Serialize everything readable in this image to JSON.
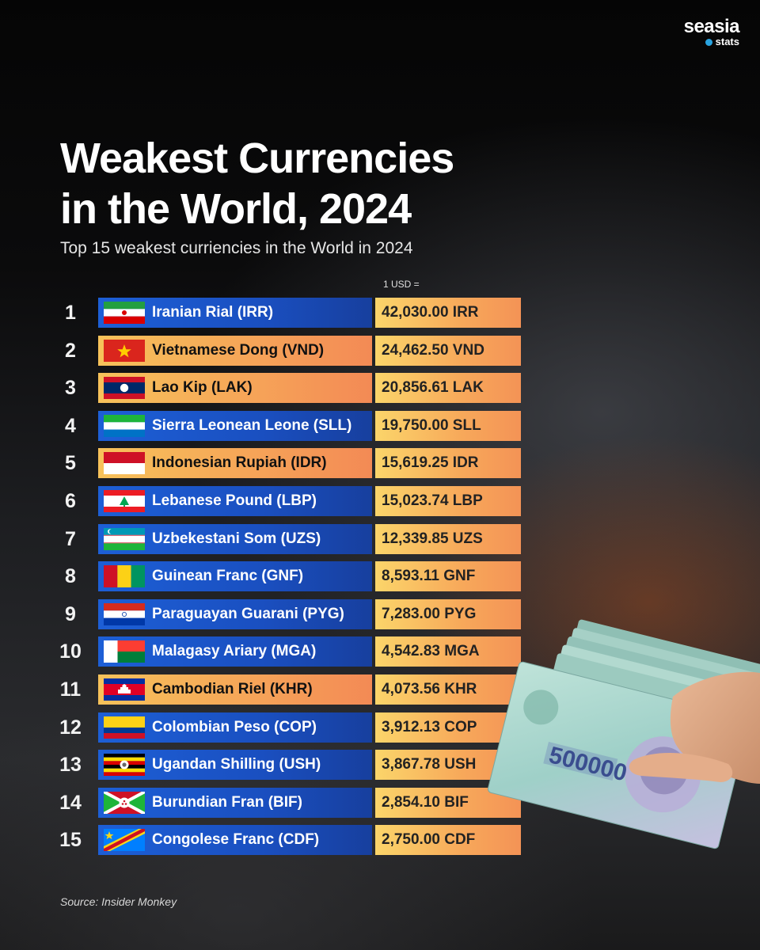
{
  "brand": {
    "name": "seasia",
    "sub": "stats"
  },
  "title_line1": "Weakest Currencies",
  "title_line2": "in the World, 2024",
  "subtitle": "Top 15 weakest curriencies in the World in 2024",
  "column_header": "1 USD =",
  "source": "Source: Insider Monkey",
  "banknote_text": "500000",
  "colors": {
    "blue_cell": "#1d5fd6",
    "orange_cell": "#f6a558",
    "value_cell": "#f7a85a",
    "background": "#0b0b0c"
  },
  "chart_data": {
    "type": "table",
    "title": "Weakest Currencies in the World, 2024",
    "subtitle": "Top 15 weakest curriencies in the World in 2024",
    "columns": [
      "rank",
      "currency",
      "1 USD ="
    ],
    "rows": [
      {
        "rank": "1",
        "currency": "Iranian Rial (IRR)",
        "value": "42,030.00 IRR",
        "flag": "iran",
        "style": "blue"
      },
      {
        "rank": "2",
        "currency": "Vietnamese Dong (VND)",
        "value": "24,462.50 VND",
        "flag": "vietnam",
        "style": "orange"
      },
      {
        "rank": "3",
        "currency": "Lao Kip (LAK)",
        "value": "20,856.61 LAK",
        "flag": "laos",
        "style": "orange"
      },
      {
        "rank": "4",
        "currency": "Sierra Leonean Leone (SLL)",
        "value": "19,750.00 SLL",
        "flag": "sierra-leone",
        "style": "blue"
      },
      {
        "rank": "5",
        "currency": "Indonesian Rupiah (IDR)",
        "value": "15,619.25 IDR",
        "flag": "indonesia",
        "style": "orange"
      },
      {
        "rank": "6",
        "currency": "Lebanese Pound (LBP)",
        "value": "15,023.74 LBP",
        "flag": "lebanon",
        "style": "blue"
      },
      {
        "rank": "7",
        "currency": "Uzbekestani Som (UZS)",
        "value": "12,339.85 UZS",
        "flag": "uzbekistan",
        "style": "blue"
      },
      {
        "rank": "8",
        "currency": "Guinean Franc (GNF)",
        "value": "8,593.11 GNF",
        "flag": "guinea",
        "style": "blue"
      },
      {
        "rank": "9",
        "currency": "Paraguayan Guarani (PYG)",
        "value": "7,283.00 PYG",
        "flag": "paraguay",
        "style": "blue"
      },
      {
        "rank": "10",
        "currency": "Malagasy Ariary (MGA)",
        "value": "4,542.83 MGA",
        "flag": "madagascar",
        "style": "blue"
      },
      {
        "rank": "11",
        "currency": "Cambodian Riel (KHR)",
        "value": "4,073.56 KHR",
        "flag": "cambodia",
        "style": "orange"
      },
      {
        "rank": "12",
        "currency": "Colombian Peso (COP)",
        "value": "3,912.13 COP",
        "flag": "colombia",
        "style": "blue"
      },
      {
        "rank": "13",
        "currency": "Ugandan Shilling (USH)",
        "value": "3,867.78 USH",
        "flag": "uganda",
        "style": "blue"
      },
      {
        "rank": "14",
        "currency": "Burundian Fran (BIF)",
        "value": "2,854.10 BIF",
        "flag": "burundi",
        "style": "blue"
      },
      {
        "rank": "15",
        "currency": "Congolese Franc (CDF)",
        "value": "2,750.00 CDF",
        "flag": "dr-congo",
        "style": "blue"
      }
    ]
  }
}
